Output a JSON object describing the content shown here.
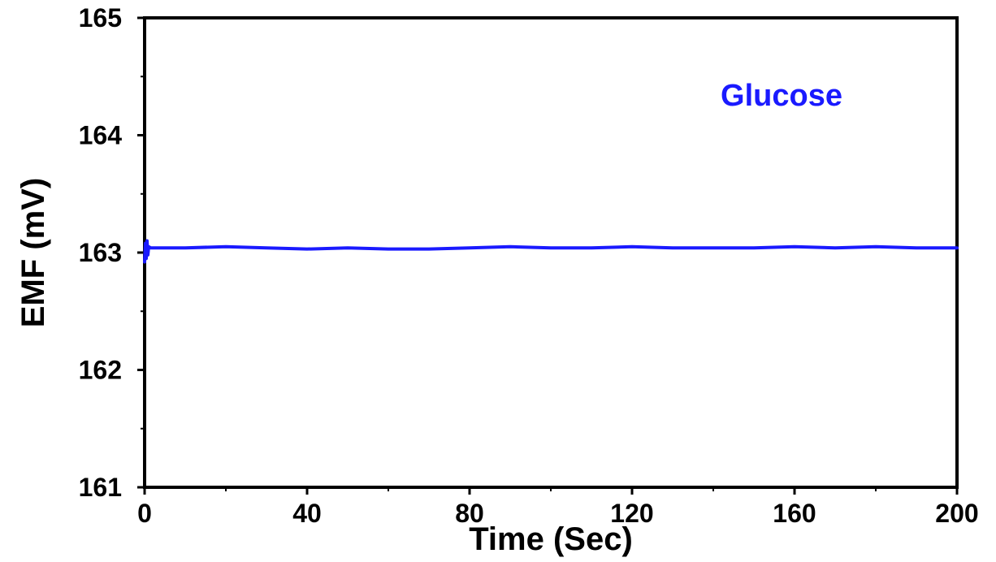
{
  "chart_data": {
    "type": "line",
    "xlabel": "Time (Sec)",
    "ylabel": "EMF (mV)",
    "xlim": [
      0,
      200
    ],
    "ylim": [
      161,
      165
    ],
    "xticks": [
      0,
      40,
      80,
      120,
      160,
      200
    ],
    "xtick_labels": [
      "0",
      "40",
      "80",
      "120",
      "160",
      "200"
    ],
    "yticks": [
      161,
      162,
      163,
      164,
      165
    ],
    "ytick_labels": [
      "161",
      "162",
      "163",
      "164",
      "165"
    ],
    "grid": false,
    "annotation": {
      "text": "Glucose",
      "color": "#1a1aff",
      "position": "top-right"
    },
    "series": [
      {
        "color": "#1a1aff",
        "x": [
          0,
          0.2,
          0.4,
          0.6,
          0.8,
          1.0,
          1.5,
          2,
          5,
          10,
          20,
          30,
          40,
          50,
          60,
          70,
          80,
          90,
          100,
          110,
          120,
          130,
          140,
          150,
          160,
          170,
          180,
          190,
          200
        ],
        "y": [
          162.92,
          163.08,
          162.95,
          163.1,
          162.98,
          163.05,
          163.04,
          163.04,
          163.04,
          163.04,
          163.05,
          163.04,
          163.03,
          163.04,
          163.03,
          163.03,
          163.04,
          163.05,
          163.04,
          163.04,
          163.05,
          163.04,
          163.04,
          163.04,
          163.05,
          163.04,
          163.05,
          163.04,
          163.04
        ]
      }
    ]
  }
}
